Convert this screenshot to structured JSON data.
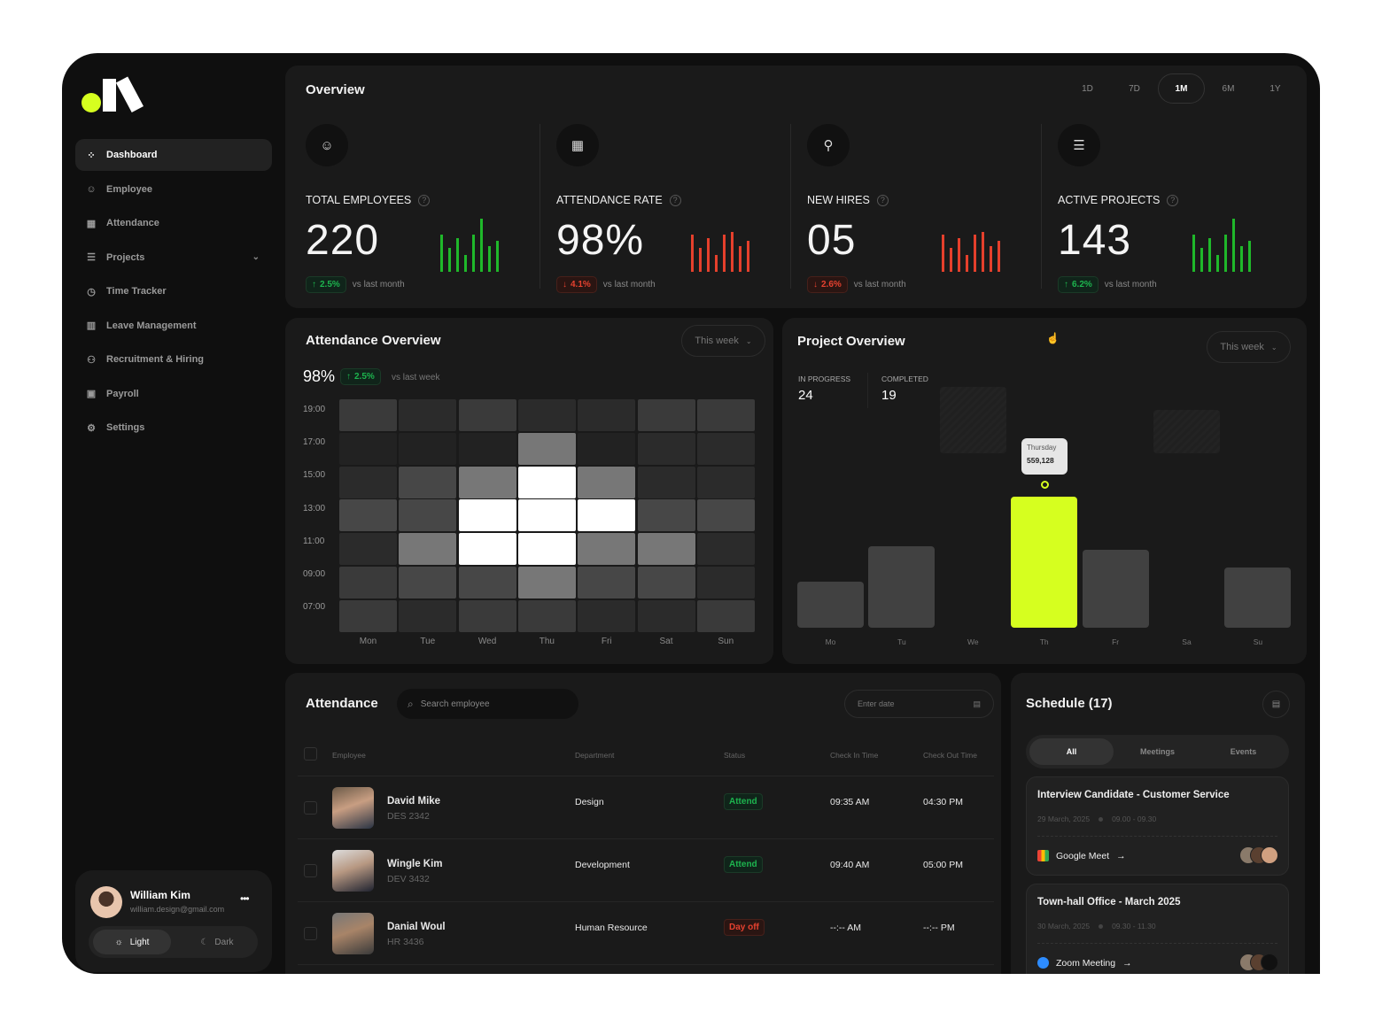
{
  "brand": {
    "accent": "#d6ff1f"
  },
  "sidebar": {
    "items": [
      {
        "label": "Dashboard",
        "icon": "dashboard-icon",
        "active": true
      },
      {
        "label": "Employee",
        "icon": "users-icon"
      },
      {
        "label": "Attendance",
        "icon": "calendar-icon"
      },
      {
        "label": "Projects",
        "icon": "list-icon",
        "expandable": true
      },
      {
        "label": "Time Tracker",
        "icon": "clock-icon"
      },
      {
        "label": "Leave Management",
        "icon": "leave-calendar-icon"
      },
      {
        "label": "Recruitment & Hiring",
        "icon": "recruit-icon"
      },
      {
        "label": "Payroll",
        "icon": "payroll-icon"
      },
      {
        "label": "Settings",
        "icon": "gear-icon"
      }
    ],
    "user": {
      "name": "William Kim",
      "email": "william.design@gmail.com",
      "menu": "•••"
    },
    "theme": {
      "light": "Light",
      "dark": "Dark"
    }
  },
  "overview": {
    "title": "Overview",
    "ranges": [
      "1D",
      "7D",
      "1M",
      "6M",
      "1Y"
    ],
    "selected_range": "1M",
    "kpis": [
      {
        "label": "TOTAL EMPLOYEES",
        "value": "220",
        "delta": "2.5%",
        "trend": "up",
        "compare": "vs last month",
        "icon": "users-icon",
        "spark": [
          42,
          27,
          38,
          19,
          42,
          60,
          29,
          35
        ],
        "color": "#1fb82a"
      },
      {
        "label": "ATTENDANCE RATE",
        "value": "98%",
        "delta": "4.1%",
        "trend": "down",
        "compare": "vs last month",
        "icon": "calendar-icon",
        "spark": [
          42,
          27,
          38,
          19,
          42,
          45,
          29,
          35
        ],
        "color": "#e5402c"
      },
      {
        "label": "NEW HIRES",
        "value": "05",
        "delta": "2.6%",
        "trend": "down",
        "compare": "vs last month",
        "icon": "user-add-icon",
        "spark": [
          42,
          27,
          38,
          19,
          42,
          45,
          29,
          35
        ],
        "color": "#e5402c"
      },
      {
        "label": "ACTIVE PROJECTS",
        "value": "143",
        "delta": "6.2%",
        "trend": "up",
        "compare": "vs last month",
        "icon": "list-icon",
        "spark": [
          42,
          27,
          38,
          19,
          42,
          60,
          29,
          35
        ],
        "color": "#1fb82a"
      }
    ]
  },
  "attendance_overview": {
    "title": "Attendance Overview",
    "period": "This week",
    "rate": "98%",
    "delta": "2.5%",
    "compare": "vs last week"
  },
  "project_overview": {
    "title": "Project Overview",
    "period": "This week",
    "in_progress_label": "IN PROGRESS",
    "in_progress": "24",
    "completed_label": "COMPLETED",
    "completed": "19",
    "tooltip": {
      "day": "Thursday",
      "value": "559,128"
    }
  },
  "chart_data": [
    {
      "type": "heatmap",
      "title": "Attendance Overview",
      "x": [
        "Mon",
        "Tue",
        "Wed",
        "Thu",
        "Fri",
        "Sat",
        "Sun"
      ],
      "y": [
        "19:00",
        "17:00",
        "15:00",
        "13:00",
        "11:00",
        "09:00",
        "07:00"
      ],
      "scale": [
        0,
        5
      ],
      "values": [
        [
          2,
          1,
          2,
          1,
          1,
          2,
          2
        ],
        [
          0,
          0,
          0,
          4,
          0,
          1,
          1
        ],
        [
          1,
          3,
          4,
          5,
          4,
          1,
          1
        ],
        [
          3,
          3,
          5,
          5,
          5,
          3,
          3
        ],
        [
          1,
          4,
          5,
          5,
          4,
          4,
          1
        ],
        [
          2,
          3,
          3,
          4,
          3,
          3,
          1
        ],
        [
          2,
          1,
          2,
          2,
          1,
          1,
          2
        ]
      ]
    },
    {
      "type": "bar",
      "title": "Project Overview",
      "categories": [
        "Mo",
        "Tu",
        "We",
        "Th",
        "Fr",
        "Sa",
        "Su"
      ],
      "values": [
        196000,
        348000,
        null,
        559128,
        332000,
        null,
        257000
      ],
      "highlight": "Th",
      "ylim": [
        0,
        600000
      ]
    }
  ],
  "attendance": {
    "title": "Attendance",
    "search_placeholder": "Search employee",
    "date_placeholder": "Enter date",
    "columns": [
      "Employee",
      "Department",
      "Status",
      "Check In Time",
      "Check Out Time"
    ],
    "rows": [
      {
        "name": "David Mike",
        "id": "DES 2342",
        "department": "Design",
        "status": "Attend",
        "check_in": "09:35 AM",
        "check_out": "04:30 PM"
      },
      {
        "name": "Wingle Kim",
        "id": "DEV 3432",
        "department": "Development",
        "status": "Attend",
        "check_in": "09:40 AM",
        "check_out": "05:00 PM"
      },
      {
        "name": "Danial Woul",
        "id": "HR 3436",
        "department": "Human Resource",
        "status": "Day off",
        "check_in": "--:-- AM",
        "check_out": "--:-- PM"
      }
    ]
  },
  "schedule": {
    "title": "Schedule (17)",
    "tabs": [
      "All",
      "Meetings",
      "Events"
    ],
    "selected_tab": "All",
    "items": [
      {
        "title": "Interview Candidate - Customer Service",
        "date": "29 March, 2025",
        "time": "09.00 - 09.30",
        "platform": "Google Meet"
      },
      {
        "title": "Town-hall Office - March 2025",
        "date": "30 March, 2025",
        "time": "09.30 - 11.30",
        "platform": "Zoom Meeting"
      }
    ]
  }
}
